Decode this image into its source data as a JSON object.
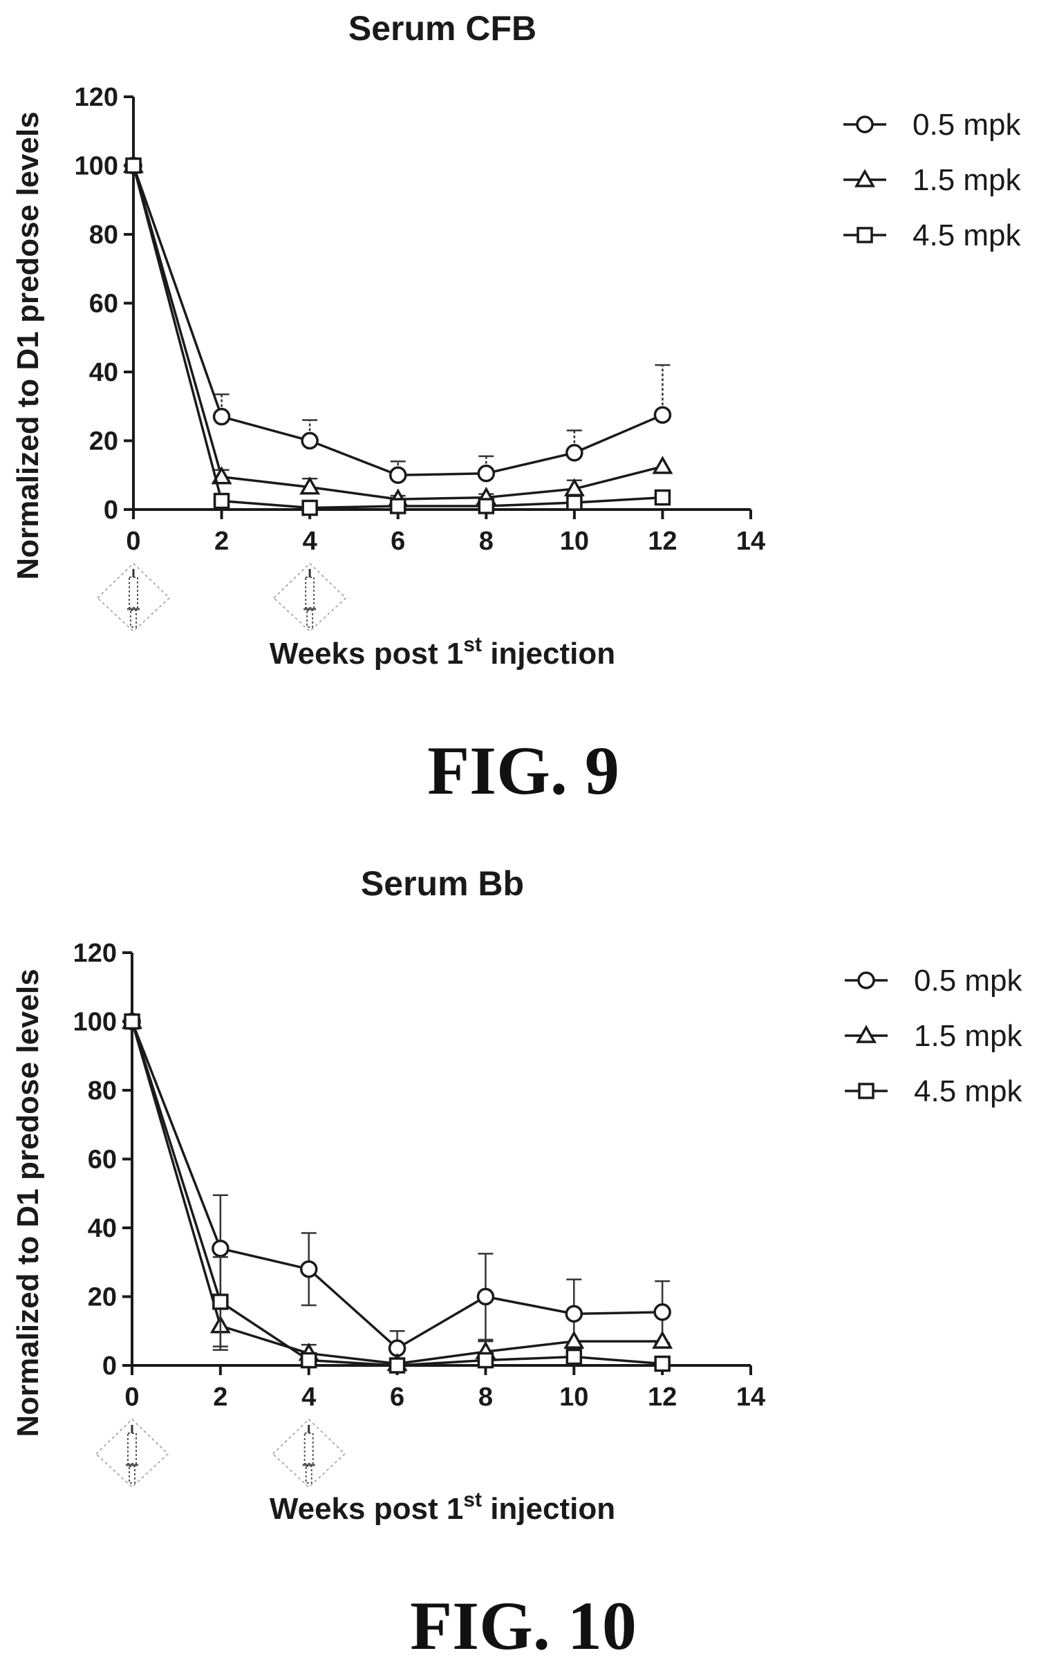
{
  "figures": [
    {
      "label": "FIG. 9"
    },
    {
      "label": "FIG. 10"
    }
  ],
  "colors": {
    "ink": "#1a1a1a",
    "error_bar": "#333333",
    "injection_marker": "#555555"
  },
  "icons": {
    "injection": "syringe-icon"
  },
  "chart_data": [
    {
      "type": "line",
      "title": "Serum CFB",
      "xlabel": "Weeks post 1st injection",
      "xlabel_parts": {
        "pre": "Weeks post 1",
        "sup": "st",
        "post": " injection"
      },
      "ylabel": "Normalized to D1 predose levels",
      "xlim": [
        0,
        14
      ],
      "ylim": [
        0,
        120
      ],
      "xticks": [
        "0",
        "2",
        "4",
        "6",
        "8",
        "10",
        "12",
        "14"
      ],
      "yticks": [
        "0",
        "20",
        "40",
        "60",
        "80",
        "100",
        "120"
      ],
      "x": [
        0,
        2,
        4,
        6,
        8,
        10,
        12
      ],
      "injection_weeks": [
        0,
        4
      ],
      "legend_position": "top-right",
      "series": [
        {
          "name": "0.5 mpk",
          "marker": "circle",
          "values": [
            100,
            27,
            20,
            10,
            10.5,
            16.5,
            27.5
          ],
          "errors": [
            0,
            6.5,
            6,
            4,
            5,
            6.5,
            14.5
          ]
        },
        {
          "name": "1.5 mpk",
          "marker": "triangle",
          "values": [
            100,
            9.5,
            6.5,
            3,
            3.5,
            6,
            12.5
          ],
          "errors": [
            0,
            2,
            2.5,
            1,
            1,
            2.5,
            0
          ]
        },
        {
          "name": "4.5 mpk",
          "marker": "square",
          "values": [
            100,
            2.5,
            0.5,
            1,
            1,
            2,
            3.5
          ],
          "errors": [
            0,
            0.5,
            0.3,
            0.3,
            0.3,
            0.4,
            0
          ]
        }
      ]
    },
    {
      "type": "line",
      "title": "Serum Bb",
      "xlabel": "Weeks post 1st injection",
      "xlabel_parts": {
        "pre": "Weeks post 1",
        "sup": "st",
        "post": " injection"
      },
      "ylabel": "Normalized to D1 predose levels",
      "xlim": [
        0,
        14
      ],
      "ylim": [
        0,
        120
      ],
      "xticks": [
        "0",
        "2",
        "4",
        "6",
        "8",
        "10",
        "12",
        "14"
      ],
      "yticks": [
        "0",
        "20",
        "40",
        "60",
        "80",
        "100",
        "120"
      ],
      "x": [
        0,
        2,
        4,
        6,
        8,
        10,
        12
      ],
      "injection_weeks": [
        0,
        4
      ],
      "legend_position": "top-right",
      "series": [
        {
          "name": "0.5 mpk",
          "marker": "circle",
          "values": [
            100,
            34,
            28,
            5,
            20,
            15,
            15.5
          ],
          "errors": [
            0,
            15.5,
            10.5,
            5,
            12.5,
            10,
            9
          ]
        },
        {
          "name": "1.5 mpk",
          "marker": "triangle",
          "values": [
            100,
            11.5,
            3.5,
            0.5,
            4,
            7,
            7
          ],
          "errors": [
            0,
            7,
            2.5,
            0.5,
            3,
            0,
            0
          ]
        },
        {
          "name": "4.5 mpk",
          "marker": "square",
          "values": [
            100,
            18.5,
            1.5,
            0,
            1.5,
            2.5,
            0.5
          ],
          "errors": [
            0,
            13,
            1,
            0,
            1,
            1,
            0
          ]
        }
      ]
    }
  ]
}
